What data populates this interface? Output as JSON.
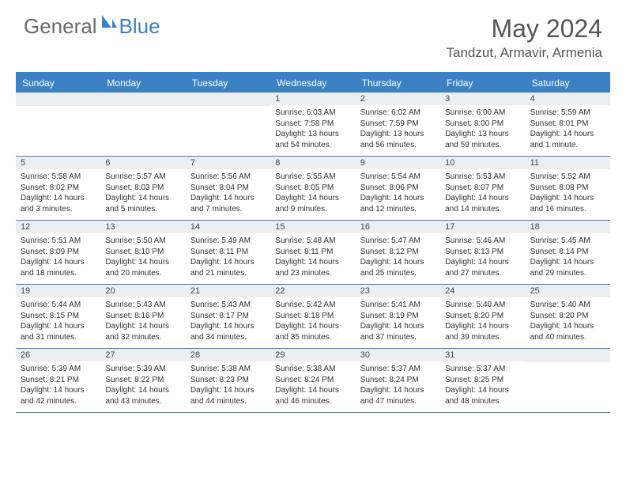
{
  "logo": {
    "text1": "General",
    "text2": "Blue"
  },
  "title": "May 2024",
  "location": "Tandzut, Armavir, Armenia",
  "colors": {
    "brand": "#3a82c4",
    "logo_gray": "#6b6b6b",
    "header_bar_bg": "#3a82c4",
    "daynum_bg": "#eceff1",
    "text": "#333333",
    "title_text": "#555555"
  },
  "weekdays": [
    "Sunday",
    "Monday",
    "Tuesday",
    "Wednesday",
    "Thursday",
    "Friday",
    "Saturday"
  ],
  "weeks": [
    [
      null,
      null,
      null,
      {
        "n": "1",
        "sr": "6:03 AM",
        "ss": "7:58 PM",
        "dl": "13 hours and 54 minutes."
      },
      {
        "n": "2",
        "sr": "6:02 AM",
        "ss": "7:59 PM",
        "dl": "13 hours and 56 minutes."
      },
      {
        "n": "3",
        "sr": "6:00 AM",
        "ss": "8:00 PM",
        "dl": "13 hours and 59 minutes."
      },
      {
        "n": "4",
        "sr": "5:59 AM",
        "ss": "8:01 PM",
        "dl": "14 hours and 1 minute."
      }
    ],
    [
      {
        "n": "5",
        "sr": "5:58 AM",
        "ss": "8:02 PM",
        "dl": "14 hours and 3 minutes."
      },
      {
        "n": "6",
        "sr": "5:57 AM",
        "ss": "8:03 PM",
        "dl": "14 hours and 5 minutes."
      },
      {
        "n": "7",
        "sr": "5:56 AM",
        "ss": "8:04 PM",
        "dl": "14 hours and 7 minutes."
      },
      {
        "n": "8",
        "sr": "5:55 AM",
        "ss": "8:05 PM",
        "dl": "14 hours and 9 minutes."
      },
      {
        "n": "9",
        "sr": "5:54 AM",
        "ss": "8:06 PM",
        "dl": "14 hours and 12 minutes."
      },
      {
        "n": "10",
        "sr": "5:53 AM",
        "ss": "8:07 PM",
        "dl": "14 hours and 14 minutes."
      },
      {
        "n": "11",
        "sr": "5:52 AM",
        "ss": "8:08 PM",
        "dl": "14 hours and 16 minutes."
      }
    ],
    [
      {
        "n": "12",
        "sr": "5:51 AM",
        "ss": "8:09 PM",
        "dl": "14 hours and 18 minutes."
      },
      {
        "n": "13",
        "sr": "5:50 AM",
        "ss": "8:10 PM",
        "dl": "14 hours and 20 minutes."
      },
      {
        "n": "14",
        "sr": "5:49 AM",
        "ss": "8:11 PM",
        "dl": "14 hours and 21 minutes."
      },
      {
        "n": "15",
        "sr": "5:48 AM",
        "ss": "8:11 PM",
        "dl": "14 hours and 23 minutes."
      },
      {
        "n": "16",
        "sr": "5:47 AM",
        "ss": "8:12 PM",
        "dl": "14 hours and 25 minutes."
      },
      {
        "n": "17",
        "sr": "5:46 AM",
        "ss": "8:13 PM",
        "dl": "14 hours and 27 minutes."
      },
      {
        "n": "18",
        "sr": "5:45 AM",
        "ss": "8:14 PM",
        "dl": "14 hours and 29 minutes."
      }
    ],
    [
      {
        "n": "19",
        "sr": "5:44 AM",
        "ss": "8:15 PM",
        "dl": "14 hours and 31 minutes."
      },
      {
        "n": "20",
        "sr": "5:43 AM",
        "ss": "8:16 PM",
        "dl": "14 hours and 32 minutes."
      },
      {
        "n": "21",
        "sr": "5:43 AM",
        "ss": "8:17 PM",
        "dl": "14 hours and 34 minutes."
      },
      {
        "n": "22",
        "sr": "5:42 AM",
        "ss": "8:18 PM",
        "dl": "14 hours and 35 minutes."
      },
      {
        "n": "23",
        "sr": "5:41 AM",
        "ss": "8:19 PM",
        "dl": "14 hours and 37 minutes."
      },
      {
        "n": "24",
        "sr": "5:40 AM",
        "ss": "8:20 PM",
        "dl": "14 hours and 39 minutes."
      },
      {
        "n": "25",
        "sr": "5:40 AM",
        "ss": "8:20 PM",
        "dl": "14 hours and 40 minutes."
      }
    ],
    [
      {
        "n": "26",
        "sr": "5:39 AM",
        "ss": "8:21 PM",
        "dl": "14 hours and 42 minutes."
      },
      {
        "n": "27",
        "sr": "5:39 AM",
        "ss": "8:22 PM",
        "dl": "14 hours and 43 minutes."
      },
      {
        "n": "28",
        "sr": "5:38 AM",
        "ss": "8:23 PM",
        "dl": "14 hours and 44 minutes."
      },
      {
        "n": "29",
        "sr": "5:38 AM",
        "ss": "8:24 PM",
        "dl": "14 hours and 46 minutes."
      },
      {
        "n": "30",
        "sr": "5:37 AM",
        "ss": "8:24 PM",
        "dl": "14 hours and 47 minutes."
      },
      {
        "n": "31",
        "sr": "5:37 AM",
        "ss": "8:25 PM",
        "dl": "14 hours and 48 minutes."
      },
      null
    ]
  ],
  "labels": {
    "sunrise": "Sunrise:",
    "sunset": "Sunset:",
    "daylight": "Daylight:"
  }
}
